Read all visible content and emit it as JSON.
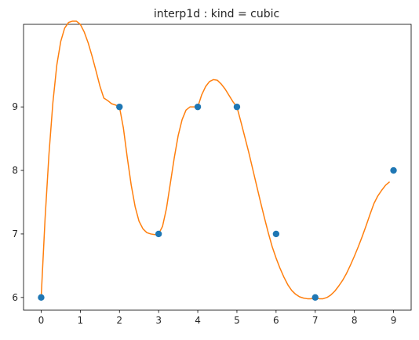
{
  "chart_data": {
    "type": "line",
    "title": "interp1d : kind = cubic",
    "xlabel": "",
    "ylabel": "",
    "xlim": [
      -0.45,
      9.45
    ],
    "ylim": [
      5.8,
      10.3
    ],
    "xticks": [
      "0",
      "1",
      "2",
      "3",
      "4",
      "5",
      "6",
      "7",
      "8",
      "9"
    ],
    "yticks": [
      "6",
      "7",
      "8",
      "9"
    ],
    "grid": false,
    "series": [
      {
        "kind": "scatter",
        "color": "#1f77b4",
        "x": [
          0,
          2,
          3,
          4,
          5,
          6,
          7,
          9
        ],
        "y": [
          6,
          9,
          7,
          9,
          9,
          7,
          6,
          8
        ]
      },
      {
        "kind": "line",
        "color": "#ff7f0e",
        "x": [
          0,
          0.1,
          0.2,
          0.3,
          0.4,
          0.5,
          0.6,
          0.7,
          0.8,
          0.9,
          1.0,
          1.1,
          1.2,
          1.3,
          1.4,
          1.5,
          1.6,
          1.7,
          1.8,
          1.9,
          2.0,
          2.1,
          2.2,
          2.3,
          2.4,
          2.5,
          2.6,
          2.7,
          2.8,
          2.9,
          3.0,
          3.1,
          3.2,
          3.3,
          3.4,
          3.5,
          3.6,
          3.7,
          3.8,
          3.9,
          4.0,
          4.1,
          4.2,
          4.3,
          4.4,
          4.5,
          4.6,
          4.7,
          4.8,
          4.9,
          5.0,
          5.1,
          5.2,
          5.3,
          5.4,
          5.5,
          5.6,
          5.7,
          5.8,
          5.9,
          6.0,
          6.1,
          6.2,
          6.3,
          6.4,
          6.5,
          6.6,
          6.7,
          6.8,
          6.9,
          7.0,
          7.1,
          7.2,
          7.3,
          7.4,
          7.5,
          7.6,
          7.7,
          7.8,
          7.9,
          8.0,
          8.1,
          8.2,
          8.3,
          8.4,
          8.5,
          8.6,
          8.7,
          8.8,
          8.9
        ],
        "y": [
          6.0,
          7.24,
          8.26,
          9.07,
          9.66,
          10.03,
          10.24,
          10.33,
          10.35,
          10.35,
          10.3,
          10.18,
          10.01,
          9.8,
          9.57,
          9.33,
          9.14,
          9.1,
          9.05,
          9.03,
          9.0,
          8.67,
          8.2,
          7.77,
          7.43,
          7.2,
          7.08,
          7.02,
          7.0,
          6.99,
          7.0,
          7.12,
          7.4,
          7.8,
          8.2,
          8.55,
          8.8,
          8.95,
          9.0,
          9.0,
          9.0,
          9.19,
          9.32,
          9.4,
          9.43,
          9.42,
          9.36,
          9.28,
          9.18,
          9.08,
          9.0,
          8.77,
          8.53,
          8.29,
          8.03,
          7.77,
          7.51,
          7.26,
          7.02,
          6.8,
          6.62,
          6.46,
          6.32,
          6.2,
          6.11,
          6.05,
          6.01,
          5.99,
          5.98,
          5.98,
          6.0,
          5.98,
          5.98,
          6.0,
          6.04,
          6.1,
          6.18,
          6.27,
          6.38,
          6.51,
          6.65,
          6.8,
          6.96,
          7.13,
          7.31,
          7.48,
          7.6,
          7.69,
          7.77,
          7.82
        ]
      }
    ]
  }
}
